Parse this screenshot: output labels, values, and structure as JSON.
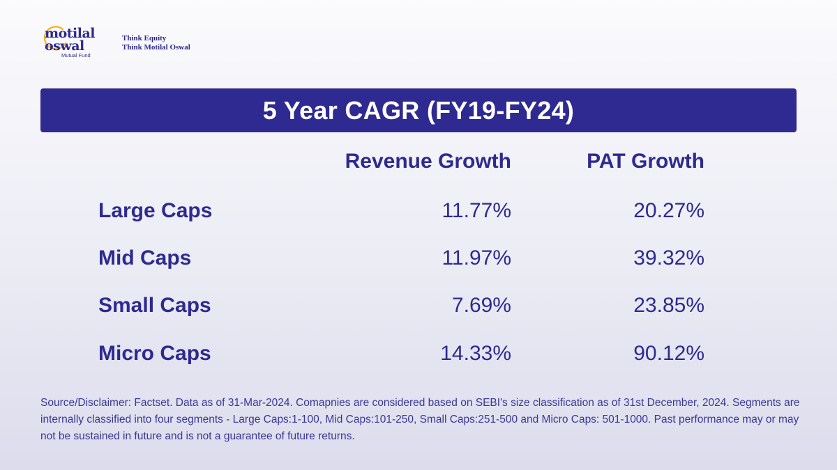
{
  "brand": {
    "logo_word_1": "motilal",
    "logo_word_2": "oswal",
    "logo_sub": "Mutual Fund",
    "tagline_1": "Think Equity",
    "tagline_2": "Think Motilal Oswal",
    "accent_color": "#f2b316",
    "primary_color": "#2e2a91"
  },
  "title": "5 Year CAGR (FY19-FY24)",
  "table": {
    "headers": [
      "Revenue Growth",
      "PAT Growth"
    ],
    "rows": [
      {
        "label": "Large Caps",
        "revenue": "11.77%",
        "pat": "20.27%"
      },
      {
        "label": "Mid Caps",
        "revenue": "11.97%",
        "pat": "39.32%"
      },
      {
        "label": "Small Caps",
        "revenue": "7.69%",
        "pat": "23.85%"
      },
      {
        "label": "Micro Caps",
        "revenue": "14.33%",
        "pat": "90.12%"
      }
    ]
  },
  "disclaimer": "Source/Disclaimer: Factset. Data as of 31-Mar-2024. Comapnies are considered based on SEBI's size classification as of 31st December, 2024. Segments are internally classified into four segments - Large Caps:1-100, Mid Caps:101-250, Small Caps:251-500 and Micro Caps: 501-1000. Past performance may or may not be sustained in future and is not a guarantee of future returns."
}
